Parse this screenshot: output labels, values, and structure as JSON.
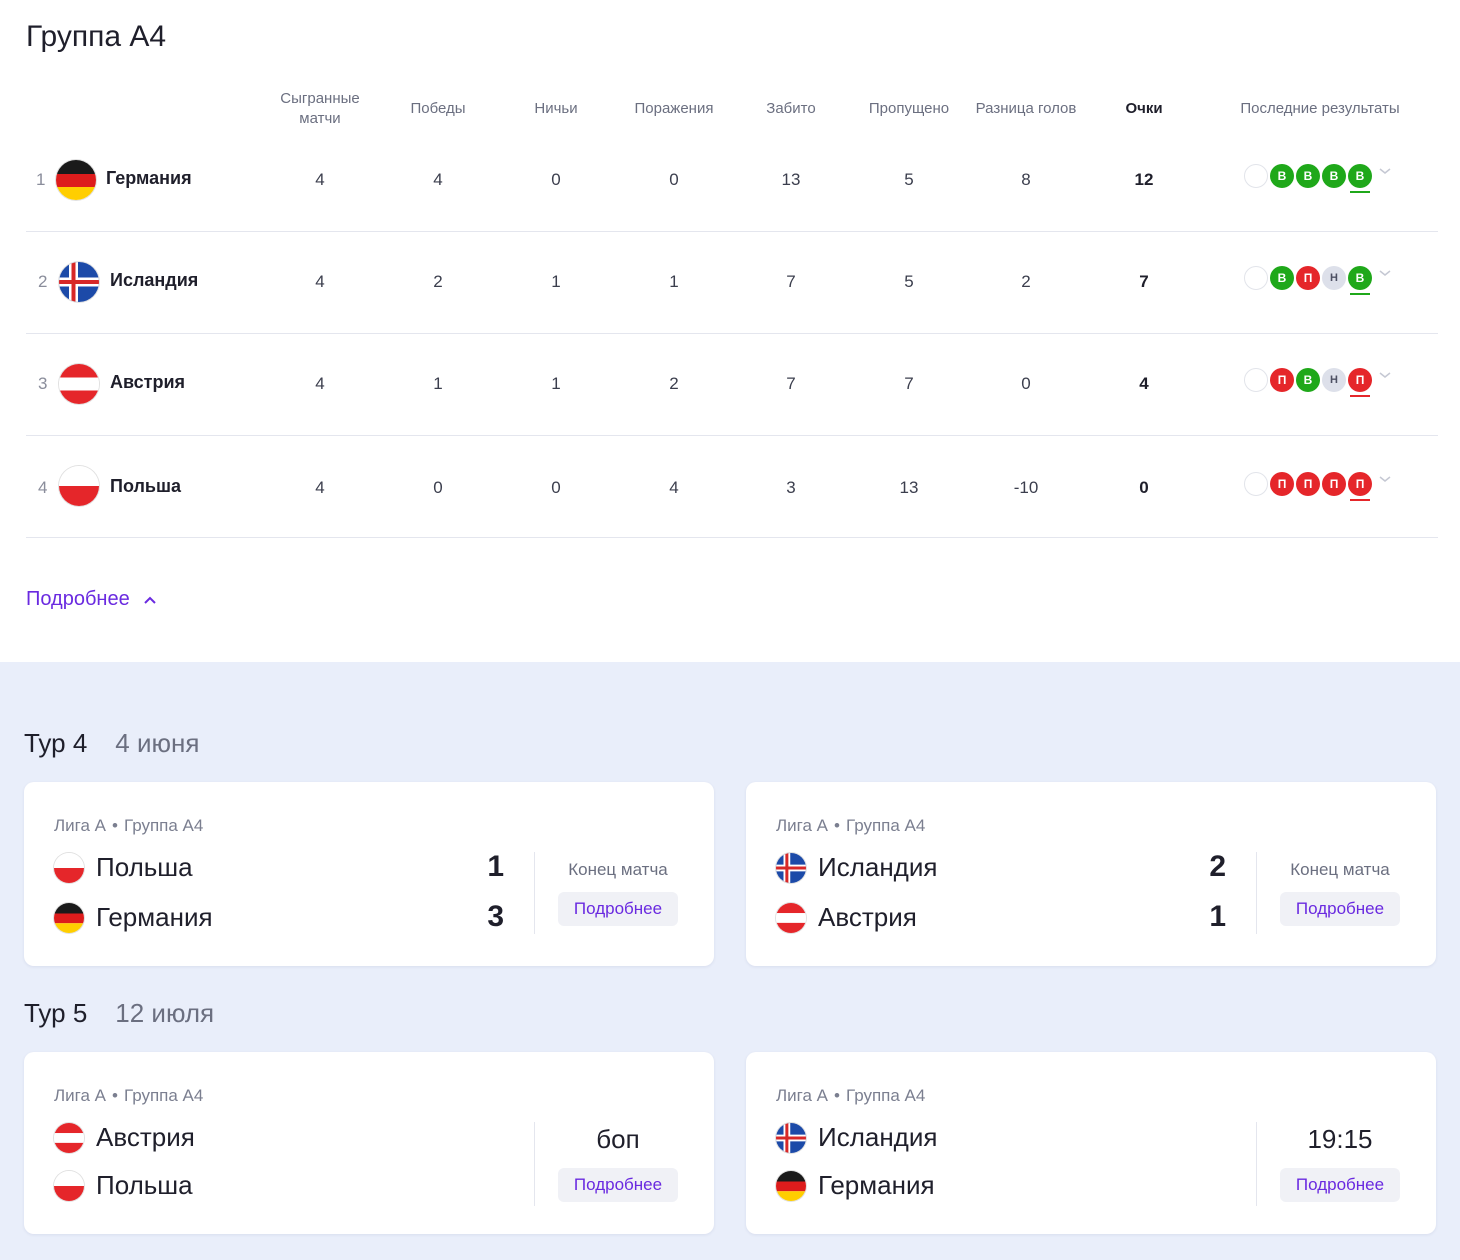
{
  "group_title": "Группа А4",
  "columns": {
    "played": "Сыгранные матчи",
    "wins": "Победы",
    "draws": "Ничьи",
    "losses": "Поражения",
    "scored": "Забито",
    "conceded": "Пропущено",
    "diff": "Разница голов",
    "points": "Очки",
    "form": "Последние результаты"
  },
  "rows": [
    {
      "pos": "1",
      "team": "Германия",
      "played": "4",
      "wins": "4",
      "draws": "0",
      "losses": "0",
      "scored": "13",
      "conceded": "5",
      "diff": "8",
      "points": "12",
      "form": [
        "В",
        "В",
        "В",
        "В"
      ]
    },
    {
      "pos": "2",
      "team": "Исландия",
      "played": "4",
      "wins": "2",
      "draws": "1",
      "losses": "1",
      "scored": "7",
      "conceded": "5",
      "diff": "2",
      "points": "7",
      "form": [
        "В",
        "П",
        "Н",
        "В"
      ]
    },
    {
      "pos": "3",
      "team": "Австрия",
      "played": "4",
      "wins": "1",
      "draws": "1",
      "losses": "2",
      "scored": "7",
      "conceded": "7",
      "diff": "0",
      "points": "4",
      "form": [
        "П",
        "В",
        "Н",
        "П"
      ]
    },
    {
      "pos": "4",
      "team": "Польша",
      "played": "4",
      "wins": "0",
      "draws": "0",
      "losses": "4",
      "scored": "3",
      "conceded": "13",
      "diff": "-10",
      "points": "0",
      "form": [
        "П",
        "П",
        "П",
        "П"
      ]
    }
  ],
  "more_link": "Подробнее",
  "rounds": [
    {
      "label": "Тур 4",
      "date": "4 июня"
    },
    {
      "label": "Тур 5",
      "date": "12 июля"
    }
  ],
  "matches": [
    {
      "league": "Лига А",
      "group": "Группа А4",
      "home": "Польша",
      "away": "Германия",
      "home_score": "1",
      "away_score": "3",
      "status": "Конец матча",
      "button": "Подробнее"
    },
    {
      "league": "Лига А",
      "group": "Группа А4",
      "home": "Исландия",
      "away": "Австрия",
      "home_score": "2",
      "away_score": "1",
      "status": "Конец матча",
      "button": "Подробнее"
    },
    {
      "league": "Лига А",
      "group": "Группа А4",
      "home": "Австрия",
      "away": "Польша",
      "home_score": "",
      "away_score": "",
      "status": "боп",
      "button": "Подробнее"
    },
    {
      "league": "Лига А",
      "group": "Группа А4",
      "home": "Исландия",
      "away": "Германия",
      "home_score": "",
      "away_score": "",
      "status": "19:15",
      "button": "Подробнее"
    }
  ],
  "colors": {
    "win": "#1fa81a",
    "loss": "#e5262a",
    "draw": "#dde0ea",
    "accent": "#6a2ae0",
    "lower_bg": "#e9eefa"
  }
}
